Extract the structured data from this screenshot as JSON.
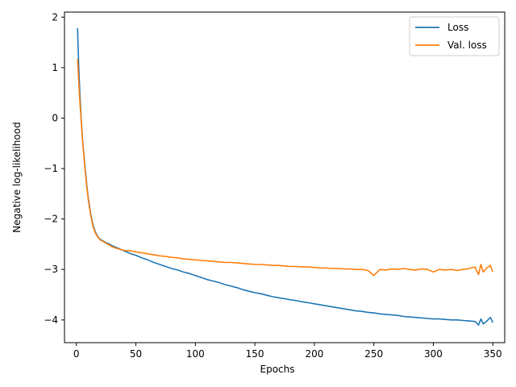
{
  "chart_data": {
    "type": "line",
    "title": "",
    "xlabel": "Epochs",
    "ylabel": "Negative log-likelihood",
    "xlim": [
      -10,
      360
    ],
    "ylim": [
      -4.45,
      2.1
    ],
    "xticks": [
      0,
      50,
      100,
      150,
      200,
      250,
      300,
      350
    ],
    "yticks": [
      -4,
      -3,
      -2,
      -1,
      0,
      1,
      2
    ],
    "grid": false,
    "legend": "top-right",
    "series": [
      {
        "name": "Loss",
        "color": "#1f77b4",
        "x": [
          1,
          2,
          3,
          4,
          5,
          6,
          7,
          8,
          9,
          10,
          12,
          14,
          16,
          18,
          20,
          22,
          25,
          28,
          30,
          35,
          40,
          45,
          50,
          55,
          60,
          65,
          70,
          75,
          80,
          85,
          90,
          95,
          100,
          105,
          110,
          115,
          120,
          125,
          130,
          135,
          140,
          145,
          150,
          155,
          160,
          165,
          170,
          175,
          180,
          185,
          190,
          195,
          200,
          205,
          210,
          215,
          220,
          225,
          230,
          235,
          240,
          245,
          250,
          255,
          260,
          265,
          270,
          275,
          280,
          285,
          290,
          295,
          300,
          305,
          310,
          315,
          320,
          325,
          330,
          335,
          338,
          340,
          342,
          345,
          348,
          350
        ],
        "values": [
          1.78,
          1.0,
          0.45,
          0.0,
          -0.35,
          -0.65,
          -0.92,
          -1.15,
          -1.38,
          -1.58,
          -1.9,
          -2.12,
          -2.26,
          -2.35,
          -2.4,
          -2.43,
          -2.47,
          -2.5,
          -2.53,
          -2.58,
          -2.63,
          -2.68,
          -2.72,
          -2.77,
          -2.81,
          -2.86,
          -2.9,
          -2.94,
          -2.98,
          -3.01,
          -3.05,
          -3.08,
          -3.12,
          -3.16,
          -3.2,
          -3.23,
          -3.26,
          -3.3,
          -3.33,
          -3.36,
          -3.4,
          -3.43,
          -3.46,
          -3.48,
          -3.51,
          -3.54,
          -3.56,
          -3.58,
          -3.6,
          -3.62,
          -3.64,
          -3.66,
          -3.68,
          -3.7,
          -3.72,
          -3.74,
          -3.76,
          -3.78,
          -3.8,
          -3.82,
          -3.83,
          -3.85,
          -3.86,
          -3.88,
          -3.89,
          -3.9,
          -3.91,
          -3.93,
          -3.94,
          -3.95,
          -3.96,
          -3.97,
          -3.98,
          -3.98,
          -3.99,
          -4.0,
          -4.0,
          -4.01,
          -4.02,
          -4.03,
          -4.1,
          -3.98,
          -4.08,
          -4.02,
          -3.95,
          -4.05
        ]
      },
      {
        "name": "Val. loss",
        "color": "#ff7f0e",
        "x": [
          1,
          2,
          3,
          4,
          5,
          6,
          7,
          8,
          9,
          10,
          12,
          14,
          16,
          18,
          20,
          22,
          25,
          28,
          30,
          35,
          40,
          45,
          50,
          55,
          60,
          65,
          70,
          75,
          80,
          85,
          90,
          95,
          100,
          105,
          110,
          115,
          120,
          125,
          130,
          135,
          140,
          145,
          150,
          155,
          160,
          165,
          170,
          175,
          180,
          185,
          190,
          195,
          200,
          205,
          210,
          215,
          220,
          225,
          230,
          235,
          240,
          245,
          250,
          255,
          260,
          265,
          270,
          275,
          280,
          285,
          290,
          295,
          300,
          305,
          310,
          315,
          320,
          325,
          330,
          335,
          338,
          340,
          342,
          345,
          348,
          350
        ],
        "values": [
          1.17,
          0.7,
          0.3,
          -0.05,
          -0.38,
          -0.68,
          -0.95,
          -1.2,
          -1.42,
          -1.62,
          -1.93,
          -2.15,
          -2.28,
          -2.36,
          -2.41,
          -2.44,
          -2.48,
          -2.52,
          -2.55,
          -2.59,
          -2.62,
          -2.63,
          -2.65,
          -2.67,
          -2.69,
          -2.71,
          -2.73,
          -2.74,
          -2.76,
          -2.77,
          -2.79,
          -2.8,
          -2.81,
          -2.82,
          -2.83,
          -2.84,
          -2.85,
          -2.86,
          -2.86,
          -2.87,
          -2.88,
          -2.89,
          -2.9,
          -2.9,
          -2.91,
          -2.92,
          -2.92,
          -2.93,
          -2.94,
          -2.94,
          -2.95,
          -2.95,
          -2.96,
          -2.97,
          -2.97,
          -2.98,
          -2.98,
          -2.99,
          -2.99,
          -3.0,
          -3.0,
          -3.02,
          -3.12,
          -3.0,
          -3.01,
          -2.99,
          -3.0,
          -2.98,
          -3.0,
          -3.01,
          -2.99,
          -3.0,
          -3.05,
          -3.0,
          -3.01,
          -3.0,
          -3.02,
          -3.0,
          -2.98,
          -2.95,
          -3.1,
          -2.9,
          -3.05,
          -2.97,
          -2.92,
          -3.05
        ]
      }
    ]
  }
}
